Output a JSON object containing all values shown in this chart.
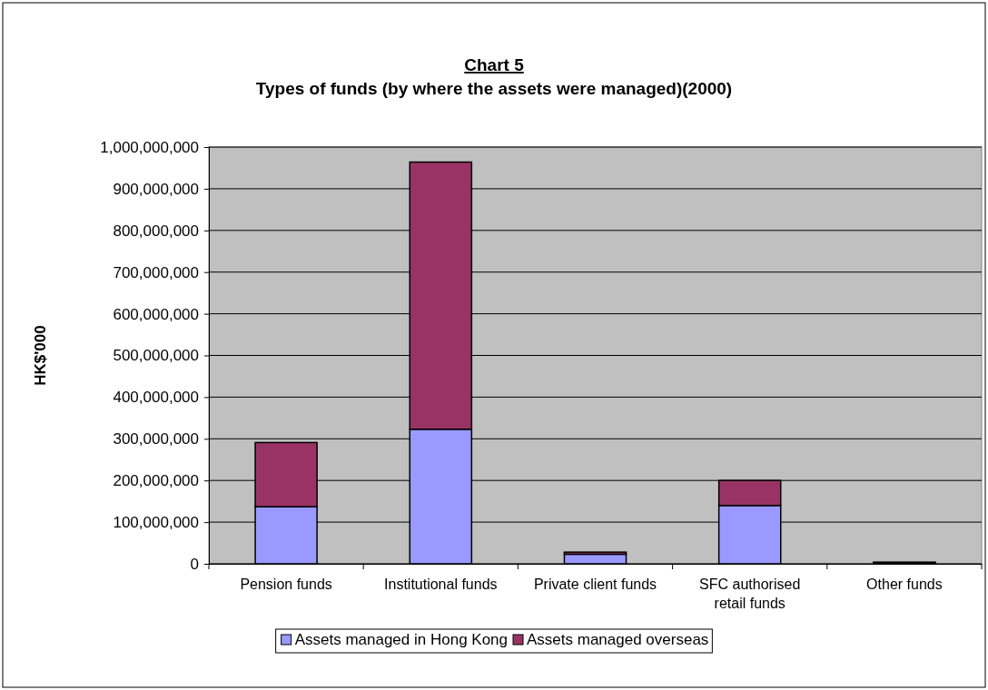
{
  "chart_data": {
    "type": "bar",
    "title": "Chart 5",
    "subtitle": "Types of funds (by where the assets were managed)(2000)",
    "ylabel": "HK$'000",
    "categories": [
      "Pension funds",
      "Institutional funds",
      "Private client funds",
      "SFC authorised retail funds",
      "Other funds"
    ],
    "stacked": true,
    "series": [
      {
        "name": "Assets managed in Hong Kong",
        "color": "#9999ff",
        "values": [
          137000000,
          323000000,
          23000000,
          140000000,
          2000000
        ]
      },
      {
        "name": "Assets managed overseas",
        "color": "#993366",
        "values": [
          154000000,
          641000000,
          5000000,
          60000000,
          2000000
        ]
      }
    ],
    "ylim": [
      0,
      1000000000
    ],
    "yticks": [
      {
        "value": 0,
        "label": "0"
      },
      {
        "value": 100000000,
        "label": "100,000,000"
      },
      {
        "value": 200000000,
        "label": "200,000,000"
      },
      {
        "value": 300000000,
        "label": "300,000,000"
      },
      {
        "value": 400000000,
        "label": "400,000,000"
      },
      {
        "value": 500000000,
        "label": "500,000,000"
      },
      {
        "value": 600000000,
        "label": "600,000,000"
      },
      {
        "value": 700000000,
        "label": "700,000,000"
      },
      {
        "value": 800000000,
        "label": "800,000,000"
      },
      {
        "value": 900000000,
        "label": "900,000,000"
      },
      {
        "value": 1000000000,
        "label": "1,000,000,000"
      }
    ],
    "grid": "y",
    "legend": "bottom"
  }
}
